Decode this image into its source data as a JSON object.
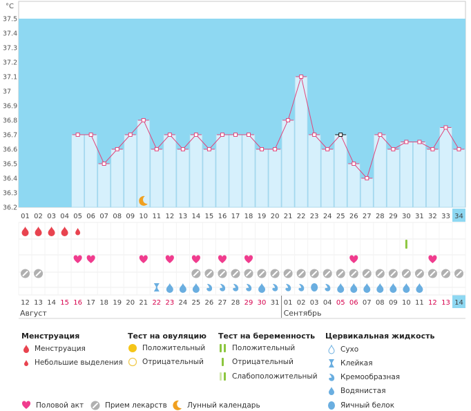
{
  "chart_data": {
    "type": "bar",
    "title": "",
    "unit": "°C",
    "ylabel": "°C",
    "ylim": [
      36.2,
      37.5
    ],
    "yticks": [
      "36.2",
      "36.3",
      "36.4",
      "36.5",
      "36.6",
      "36.7",
      "36.8",
      "36.9",
      "37",
      "37.1",
      "37.2",
      "37.3",
      "37.4",
      "37.5"
    ],
    "cycle_days": [
      "01",
      "02",
      "03",
      "04",
      "05",
      "06",
      "07",
      "08",
      "09",
      "10",
      "11",
      "12",
      "13",
      "14",
      "15",
      "16",
      "17",
      "18",
      "19",
      "20",
      "21",
      "22",
      "23",
      "24",
      "25",
      "26",
      "27",
      "28",
      "29",
      "30",
      "31",
      "32",
      "33",
      "34"
    ],
    "temperatures": [
      null,
      null,
      null,
      null,
      36.7,
      36.7,
      36.5,
      36.6,
      36.7,
      36.8,
      36.6,
      36.7,
      36.6,
      36.7,
      36.6,
      36.7,
      36.7,
      36.7,
      36.6,
      36.6,
      36.8,
      37.1,
      36.7,
      36.6,
      36.7,
      36.5,
      36.4,
      36.7,
      36.6,
      36.65,
      36.65,
      36.6,
      36.75,
      36.6
    ],
    "special_point_index": 24,
    "current_day_index": 33,
    "calendar_dates": [
      "12",
      "13",
      "14",
      "15",
      "16",
      "17",
      "18",
      "19",
      "20",
      "21",
      "22",
      "23",
      "24",
      "25",
      "26",
      "27",
      "28",
      "29",
      "30",
      "31",
      "01",
      "02",
      "03",
      "04",
      "05",
      "06",
      "07",
      "08",
      "09",
      "10",
      "11",
      "12",
      "13",
      "14"
    ],
    "weekend_indices": [
      3,
      4,
      10,
      11,
      17,
      18,
      24,
      25,
      31,
      32
    ],
    "months": [
      {
        "label": "Август",
        "start_index": 0
      },
      {
        "label": "Сентябрь",
        "start_index": 20
      }
    ],
    "rows": {
      "menstruation": [
        "heavy",
        "heavy",
        "heavy",
        "heavy",
        "light",
        null,
        null,
        null,
        null,
        null,
        null,
        null,
        null,
        null,
        null,
        null,
        null,
        null,
        null,
        null,
        null,
        null,
        null,
        null,
        null,
        null,
        null,
        null,
        null,
        null,
        null,
        null,
        null,
        null
      ],
      "pregnancy_test": [
        null,
        null,
        null,
        null,
        null,
        null,
        null,
        null,
        null,
        null,
        null,
        null,
        null,
        null,
        null,
        null,
        null,
        null,
        null,
        null,
        null,
        null,
        null,
        null,
        null,
        null,
        null,
        null,
        null,
        "positive",
        null,
        null,
        null,
        null
      ],
      "intercourse": [
        null,
        null,
        null,
        null,
        true,
        true,
        null,
        null,
        null,
        true,
        null,
        true,
        null,
        true,
        null,
        true,
        null,
        true,
        null,
        null,
        null,
        null,
        null,
        null,
        null,
        true,
        null,
        null,
        null,
        null,
        null,
        true,
        null,
        null
      ],
      "medication": [
        true,
        true,
        null,
        null,
        null,
        null,
        null,
        null,
        null,
        null,
        null,
        null,
        null,
        true,
        true,
        true,
        true,
        true,
        true,
        true,
        true,
        true,
        true,
        true,
        true,
        true,
        true,
        true,
        true,
        true,
        true,
        true,
        true,
        true
      ],
      "moon_day_index": 9,
      "fluid": [
        null,
        null,
        null,
        null,
        null,
        null,
        null,
        null,
        null,
        null,
        "sticky",
        "watery",
        "watery",
        "watery",
        "creamy",
        "creamy",
        "creamy",
        "creamy",
        "watery",
        "creamy",
        "creamy",
        "creamy",
        "egg",
        "creamy",
        "watery",
        "watery",
        "watery",
        "watery",
        "watery",
        "watery",
        "watery",
        null,
        null,
        null
      ]
    },
    "colors": {
      "plot_bg": "#8ed8f2",
      "bar_fill": "#d6f0fc",
      "bar_stroke": "#a8d8ee",
      "line": "#e0457b",
      "menstruation": "#e8434f",
      "heart": "#f03c8e",
      "pill": "#b0b0b0",
      "drop": "#6aaee0",
      "moon": "#f0a020",
      "pregnancy_green": "#8cc63f",
      "weekend": "#d6004c",
      "highlight_bg": "#8ed8f2"
    }
  },
  "legend": {
    "menstruation": {
      "title": "Менструация",
      "items": [
        "Менструация",
        "Небольшие выделения"
      ]
    },
    "ovulation_test": {
      "title": "Тест на овуляцию",
      "items": [
        "Положительный",
        "Отрицательный"
      ]
    },
    "pregnancy_test": {
      "title": "Тест на беременность",
      "items": [
        "Положительный",
        "Отрицательный",
        "Слабоположительный"
      ]
    },
    "cervical_fluid": {
      "title": "Цервикальная жидкость",
      "items": [
        "Сухо",
        "Клейкая",
        "Кремообразная",
        "Водянистая",
        "Яичный белок"
      ]
    },
    "bottom": [
      "Половой акт",
      "Прием лекарств",
      "Лунный календарь"
    ]
  }
}
